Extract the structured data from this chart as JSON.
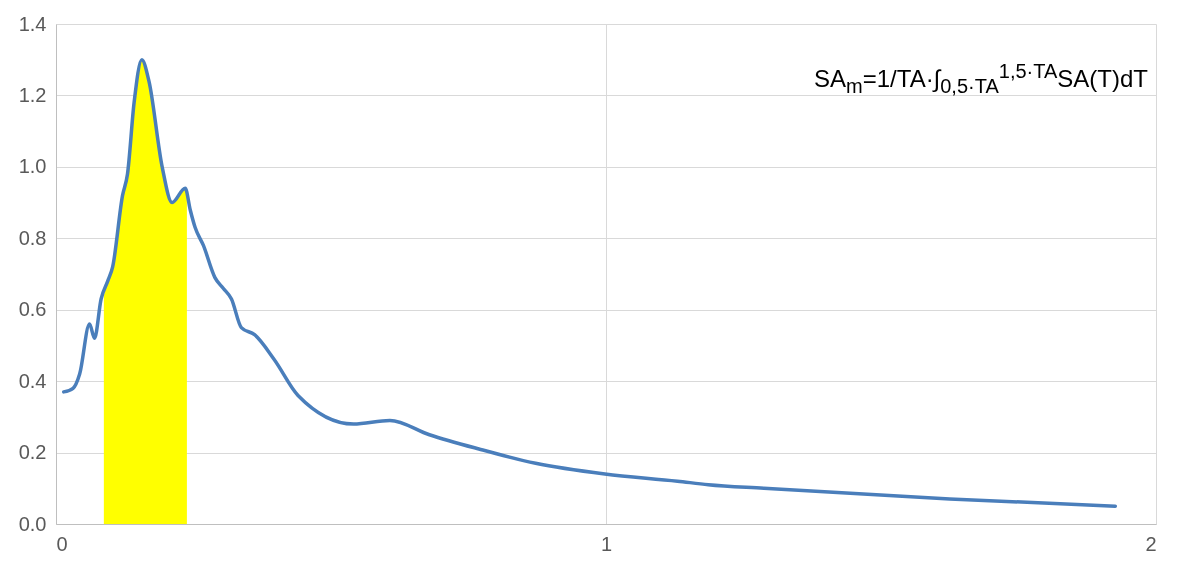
{
  "chart_data": {
    "type": "line",
    "series": [
      {
        "type": "area",
        "color": "#ffff00",
        "x": [
          0.087,
          0.094,
          0.103,
          0.121,
          0.13,
          0.142,
          0.156,
          0.169,
          0.193,
          0.211,
          0.235,
          0.238
        ],
        "values": [
          0.64,
          0.68,
          0.72,
          0.92,
          0.98,
          1.18,
          1.3,
          1.24,
          1.0,
          0.9,
          0.94,
          0.93
        ]
      },
      {
        "color": "#4a7ebb",
        "x": [
          0.014,
          0.031,
          0.043,
          0.061,
          0.07,
          0.082,
          0.094,
          0.103,
          0.121,
          0.13,
          0.142,
          0.156,
          0.169,
          0.193,
          0.211,
          0.235,
          0.244,
          0.253,
          0.268,
          0.289,
          0.304,
          0.319,
          0.337,
          0.361,
          0.397,
          0.44,
          0.541,
          0.607,
          0.679,
          0.769,
          0.872,
          0.998,
          1.13,
          1.186,
          1.287,
          1.625,
          1.926
        ],
        "values": [
          0.37,
          0.38,
          0.42,
          0.56,
          0.52,
          0.63,
          0.68,
          0.72,
          0.92,
          0.98,
          1.18,
          1.3,
          1.24,
          1.0,
          0.9,
          0.94,
          0.88,
          0.83,
          0.78,
          0.69,
          0.66,
          0.63,
          0.55,
          0.53,
          0.46,
          0.36,
          0.28,
          0.29,
          0.25,
          0.21,
          0.17,
          0.14,
          0.12,
          0.11,
          0.1,
          0.07,
          0.05
        ]
      }
    ],
    "xlim": [
      0,
      2
    ],
    "xticks": [
      0,
      1,
      2
    ],
    "ylim": [
      0,
      1.4
    ],
    "yticks": [
      {
        "value": 0,
        "label": "0.0"
      },
      0.2,
      0.4,
      0.6,
      0.8,
      {
        "value": 1,
        "label": "1.0"
      },
      1.2,
      1.4
    ],
    "grid": true,
    "annotations": [
      "SA$_{m}$=1/TA·∫$_{0,5·TA}$$^{1,5·TA}$SA(T)dT"
    ]
  }
}
